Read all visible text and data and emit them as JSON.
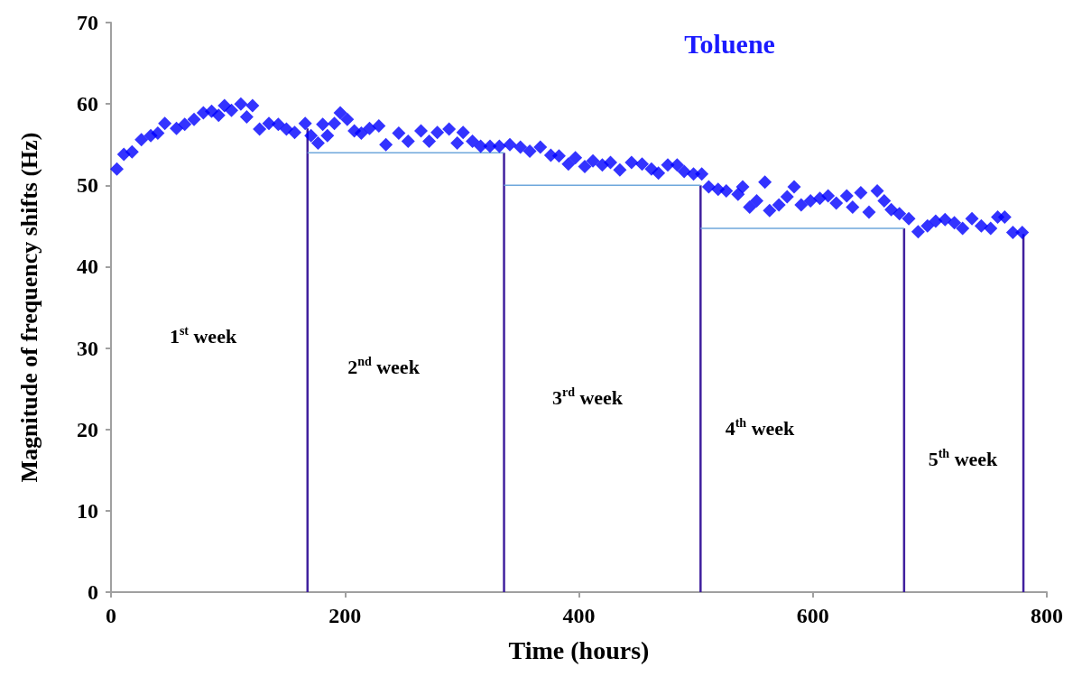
{
  "chart_data": {
    "type": "scatter",
    "title": "Toluene",
    "xlabel": "Time (hours)",
    "ylabel": "Magnitude of frequency shifts (Hz)",
    "xlim": [
      0,
      800
    ],
    "xticks": [
      0,
      200,
      400,
      600,
      800
    ],
    "ylim": [
      0,
      70
    ],
    "yticks": [
      0,
      10,
      20,
      30,
      40,
      50,
      60,
      70
    ],
    "grid": false,
    "marker": "diamond",
    "series": [
      {
        "color": "#0000ff",
        "x": [
          5,
          11,
          18,
          26,
          34,
          40,
          46,
          56,
          63,
          71,
          79,
          86,
          92,
          97,
          103,
          111,
          116,
          121,
          127,
          135,
          143,
          150,
          157,
          166,
          171,
          177,
          181,
          185,
          191,
          196,
          202,
          208,
          214,
          221,
          229,
          235,
          246,
          254,
          265,
          272,
          279,
          289,
          296,
          301,
          309,
          316,
          324,
          332,
          341,
          350,
          358,
          367,
          376,
          383,
          391,
          397,
          405,
          412,
          420,
          427,
          435,
          445,
          454,
          462,
          468,
          476,
          484,
          490,
          498,
          505,
          511,
          519,
          526,
          536,
          540,
          546,
          552,
          559,
          563,
          571,
          578,
          584,
          590,
          598,
          606,
          613,
          620,
          629,
          634,
          641,
          648,
          655,
          661,
          667,
          674,
          682,
          690,
          698,
          705,
          713,
          721,
          728,
          736,
          744,
          752,
          758,
          764,
          771,
          779
        ],
        "values": [
          52.0,
          53.8,
          54.1,
          55.6,
          56.1,
          56.4,
          57.6,
          57.0,
          57.5,
          58.1,
          58.9,
          59.1,
          58.6,
          59.8,
          59.2,
          60.0,
          58.4,
          59.8,
          56.9,
          57.6,
          57.5,
          56.9,
          56.5,
          57.6,
          56.1,
          55.2,
          57.5,
          56.1,
          57.6,
          58.9,
          58.1,
          56.7,
          56.4,
          57.0,
          57.3,
          55.0,
          56.4,
          55.4,
          56.7,
          55.4,
          56.5,
          56.9,
          55.2,
          56.5,
          55.4,
          54.8,
          54.8,
          54.8,
          55.0,
          54.7,
          54.2,
          54.7,
          53.7,
          53.6,
          52.6,
          53.4,
          52.3,
          53.0,
          52.5,
          52.8,
          51.9,
          52.8,
          52.6,
          52.0,
          51.5,
          52.5,
          52.5,
          51.7,
          51.4,
          51.4,
          49.8,
          49.5,
          49.3,
          48.9,
          49.8,
          47.3,
          48.1,
          50.4,
          46.9,
          47.6,
          48.6,
          49.8,
          47.6,
          48.1,
          48.4,
          48.7,
          47.8,
          48.7,
          47.3,
          49.1,
          46.7,
          49.3,
          48.1,
          47.0,
          46.5,
          45.9,
          44.3,
          45.0,
          45.6,
          45.8,
          45.4,
          44.7,
          45.9,
          45.0,
          44.7,
          46.1,
          46.1,
          44.2,
          44.2
        ]
      },
      {
        "type": "line",
        "color": "#40209e",
        "marker": "none",
        "x": [
          168,
          168,
          null,
          336,
          336,
          null,
          504,
          504,
          null,
          678,
          678,
          null,
          780,
          780
        ],
        "values": [
          0,
          57,
          null,
          0,
          54,
          null,
          0,
          50,
          null,
          0,
          44.7,
          null,
          0,
          44
        ]
      },
      {
        "type": "line",
        "color": "#6fa8dc",
        "marker": "none",
        "x": [
          168,
          336,
          null,
          336,
          504,
          null,
          504,
          678
        ],
        "values": [
          54,
          54,
          null,
          50,
          50,
          null,
          44.7,
          44.7
        ]
      }
    ],
    "annotations": [
      "1$^{st}$ week",
      "2$^{nd}$ week",
      "3$^{rd}$ week",
      "4$^{th}$ week",
      "5$^{th}$ week"
    ]
  }
}
